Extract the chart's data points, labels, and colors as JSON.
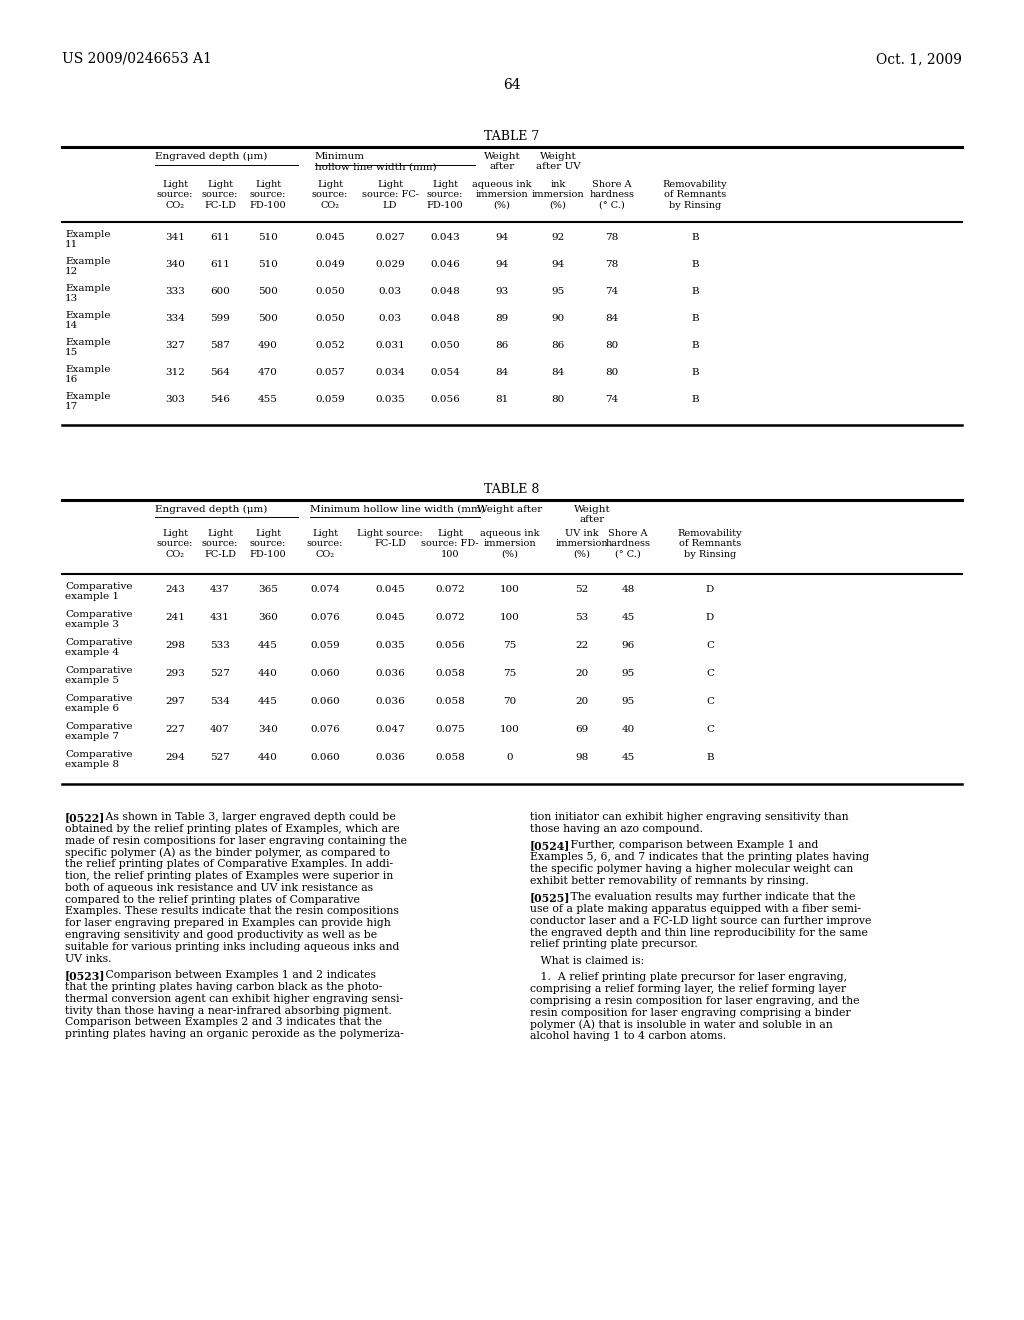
{
  "page_number": "64",
  "patent_number": "US 2009/0246653 A1",
  "patent_date": "Oct. 1, 2009",
  "table7_title": "TABLE 7",
  "table8_title": "TABLE 8",
  "table7_rows": [
    [
      "Example\n11",
      "341",
      "611",
      "510",
      "0.045",
      "0.027",
      "0.043",
      "94",
      "92",
      "78",
      "B"
    ],
    [
      "Example\n12",
      "340",
      "611",
      "510",
      "0.049",
      "0.029",
      "0.046",
      "94",
      "94",
      "78",
      "B"
    ],
    [
      "Example\n13",
      "333",
      "600",
      "500",
      "0.050",
      "0.03",
      "0.048",
      "93",
      "95",
      "74",
      "B"
    ],
    [
      "Example\n14",
      "334",
      "599",
      "500",
      "0.050",
      "0.03",
      "0.048",
      "89",
      "90",
      "84",
      "B"
    ],
    [
      "Example\n15",
      "327",
      "587",
      "490",
      "0.052",
      "0.031",
      "0.050",
      "86",
      "86",
      "80",
      "B"
    ],
    [
      "Example\n16",
      "312",
      "564",
      "470",
      "0.057",
      "0.034",
      "0.054",
      "84",
      "84",
      "80",
      "B"
    ],
    [
      "Example\n17",
      "303",
      "546",
      "455",
      "0.059",
      "0.035",
      "0.056",
      "81",
      "80",
      "74",
      "B"
    ]
  ],
  "table8_rows": [
    [
      "Comparative\nexample 1",
      "243",
      "437",
      "365",
      "0.074",
      "0.045",
      "0.072",
      "100",
      "52",
      "48",
      "D"
    ],
    [
      "Comparative\nexample 3",
      "241",
      "431",
      "360",
      "0.076",
      "0.045",
      "0.072",
      "100",
      "53",
      "45",
      "D"
    ],
    [
      "Comparative\nexample 4",
      "298",
      "533",
      "445",
      "0.059",
      "0.035",
      "0.056",
      "75",
      "22",
      "96",
      "C"
    ],
    [
      "Comparative\nexample 5",
      "293",
      "527",
      "440",
      "0.060",
      "0.036",
      "0.058",
      "75",
      "20",
      "95",
      "C"
    ],
    [
      "Comparative\nexample 6",
      "297",
      "534",
      "445",
      "0.060",
      "0.036",
      "0.058",
      "70",
      "20",
      "95",
      "C"
    ],
    [
      "Comparative\nexample 7",
      "227",
      "407",
      "340",
      "0.076",
      "0.047",
      "0.075",
      "100",
      "69",
      "40",
      "C"
    ],
    [
      "Comparative\nexample 8",
      "294",
      "527",
      "440",
      "0.060",
      "0.036",
      "0.058",
      "0",
      "98",
      "45",
      "B"
    ]
  ]
}
